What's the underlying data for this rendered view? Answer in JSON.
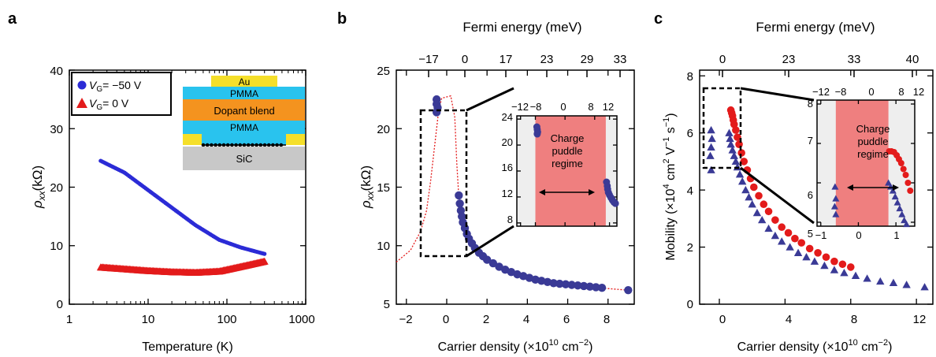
{
  "colors": {
    "blue": "#2b2bd6",
    "navy": "#3a3a96",
    "red": "#e31b1b",
    "pmma": "#29c3ee",
    "au": "#f5df2a",
    "dopant": "#f4931f",
    "sic": "#c8c8c8",
    "puddle_fill": "#ef7f7f",
    "inset_bg": "#eeeeee"
  },
  "panels": {
    "a": {
      "letter": "a",
      "legend": [
        {
          "v": "V",
          "sub": "G",
          "rest": "= −50 V"
        },
        {
          "v": "V",
          "sub": "G",
          "rest": "= 0 V"
        }
      ],
      "stack": {
        "au": "Au",
        "pmma_top": "PMMA",
        "dopant": "Dopant blend",
        "pmma_bottom": "PMMA",
        "sic": "SiC"
      }
    },
    "b": {
      "letter": "b",
      "inset_label_lines": [
        "Charge",
        "puddle",
        "regime"
      ]
    },
    "c": {
      "letter": "c",
      "inset_label_lines": [
        "Charge",
        "puddle",
        "regime"
      ]
    }
  },
  "chart_data": [
    {
      "type": "scatter",
      "panel": "a",
      "xlabel": "Temperature (K)",
      "ylabel_parts": [
        "ρ",
        "xx",
        "(kΩ)"
      ],
      "xscale": "log",
      "xlim": [
        1,
        1000
      ],
      "ylim": [
        0,
        40
      ],
      "xticks": [
        1,
        10,
        100,
        1000
      ],
      "xtick_labels": [
        "1",
        "10",
        "100",
        "1000"
      ],
      "yticks": [
        0,
        10,
        20,
        30,
        40
      ],
      "ytick_labels": [
        "0",
        "10",
        "20",
        "30",
        "40"
      ],
      "series": [
        {
          "name": "VG = −50 V",
          "marker": "circle",
          "color": "#2b2bd6",
          "x_range": [
            2.5,
            300
          ],
          "curve": [
            [
              2.5,
              24.5
            ],
            [
              5,
              22.5
            ],
            [
              10,
              19.5
            ],
            [
              20,
              16.5
            ],
            [
              40,
              13.5
            ],
            [
              80,
              11.0
            ],
            [
              150,
              9.7
            ],
            [
              300,
              8.6
            ]
          ]
        },
        {
          "name": "VG = 0 V",
          "marker": "triangle",
          "color": "#e31b1b",
          "x_range": [
            2.5,
            300
          ],
          "curve": [
            [
              2.5,
              6.3
            ],
            [
              5,
              6.0
            ],
            [
              10,
              5.7
            ],
            [
              20,
              5.5
            ],
            [
              40,
              5.4
            ],
            [
              80,
              5.6
            ],
            [
              150,
              6.4
            ],
            [
              300,
              7.3
            ]
          ]
        }
      ]
    },
    {
      "type": "scatter",
      "panel": "b",
      "xlabel_parts": [
        "Carrier density (×10",
        "10",
        " cm",
        "−2",
        ")"
      ],
      "ylabel_parts": [
        "ρ",
        "xx",
        "(kΩ)"
      ],
      "top_axis_label": "Fermi energy (meV)",
      "xlim": [
        -2.5,
        9.3
      ],
      "ylim": [
        5,
        25
      ],
      "xticks": [
        -2,
        0,
        2,
        4,
        6,
        8
      ],
      "xtick_labels": [
        "−2",
        "0",
        "2",
        "4",
        "6",
        "8"
      ],
      "yticks": [
        5,
        10,
        15,
        20,
        25
      ],
      "ytick_labels": [
        "5",
        "10",
        "15",
        "20",
        "25"
      ],
      "top_ticks": [
        -17,
        0,
        17,
        23,
        29,
        33
      ],
      "top_tick_labels": [
        "−17",
        "0",
        "17",
        "23",
        "29",
        "33"
      ],
      "series": [
        {
          "name": "",
          "marker": "circle",
          "color": "#3a3a96",
          "points": [
            [
              -0.5,
              22.5
            ],
            [
              -0.5,
              22.1
            ],
            [
              -0.45,
              21.8
            ],
            [
              -0.5,
              21.4
            ],
            [
              0.6,
              14.3
            ],
            [
              0.65,
              13.6
            ],
            [
              0.7,
              13.0
            ],
            [
              0.75,
              12.5
            ],
            [
              0.8,
              12.0
            ],
            [
              0.9,
              11.5
            ],
            [
              1.0,
              11.0
            ],
            [
              1.1,
              10.6
            ],
            [
              1.25,
              10.2
            ],
            [
              1.4,
              9.8
            ],
            [
              1.6,
              9.4
            ],
            [
              1.8,
              9.1
            ],
            [
              2.0,
              8.8
            ],
            [
              2.3,
              8.5
            ],
            [
              2.6,
              8.2
            ],
            [
              2.9,
              7.95
            ],
            [
              3.2,
              7.75
            ],
            [
              3.5,
              7.55
            ],
            [
              3.8,
              7.4
            ],
            [
              4.1,
              7.25
            ],
            [
              4.4,
              7.1
            ],
            [
              4.7,
              7.0
            ],
            [
              5.0,
              6.9
            ],
            [
              5.3,
              6.8
            ],
            [
              5.6,
              6.75
            ],
            [
              5.9,
              6.7
            ],
            [
              6.2,
              6.65
            ],
            [
              6.5,
              6.6
            ],
            [
              6.8,
              6.55
            ],
            [
              7.1,
              6.5
            ],
            [
              7.4,
              6.45
            ],
            [
              7.7,
              6.4
            ],
            [
              9.0,
              6.2
            ]
          ]
        },
        {
          "name": "",
          "marker": "dotted-line",
          "color": "#e31b1b",
          "points": [
            [
              -2.5,
              8.6
            ],
            [
              -1.8,
              9.6
            ],
            [
              -1.3,
              11.2
            ],
            [
              -1.0,
              13.0
            ],
            [
              -0.8,
              15.5
            ],
            [
              -0.6,
              18.5
            ],
            [
              -0.4,
              21.5
            ],
            [
              -0.25,
              22.6
            ],
            [
              0.2,
              22.8
            ],
            [
              0.4,
              21.0
            ],
            [
              0.5,
              17.0
            ],
            [
              0.6,
              14.2
            ],
            [
              0.8,
              12.2
            ],
            [
              1.2,
              10.2
            ],
            [
              2.0,
              8.8
            ],
            [
              3.0,
              7.9
            ],
            [
              4.5,
              7.1
            ],
            [
              6.0,
              6.7
            ],
            [
              7.5,
              6.4
            ],
            [
              9.0,
              6.2
            ]
          ]
        }
      ],
      "inset": {
        "xlim": [
          -13,
          14
        ],
        "ylim": [
          7.5,
          24.5
        ],
        "xticks": [
          -12,
          -8,
          0,
          8,
          12
        ],
        "xtick_labels": [
          "−12",
          "−8",
          "0",
          "8",
          "12"
        ],
        "yticks": [
          8,
          12,
          16,
          20,
          24
        ],
        "ytick_labels": [
          "8",
          "12",
          "16",
          "20",
          "24"
        ],
        "puddle_range": [
          -8,
          11
        ],
        "points": [
          [
            -7.6,
            22.8
          ],
          [
            -7.5,
            22.4
          ],
          [
            -7.4,
            22.0
          ],
          [
            -7.5,
            21.7
          ],
          [
            11.2,
            14.3
          ],
          [
            11.4,
            13.7
          ],
          [
            11.5,
            13.2
          ],
          [
            11.7,
            12.7
          ],
          [
            12.0,
            12.3
          ],
          [
            12.4,
            11.9
          ],
          [
            12.8,
            11.5
          ],
          [
            13.2,
            11.2
          ],
          [
            13.6,
            11.0
          ]
        ]
      }
    },
    {
      "type": "scatter",
      "panel": "c",
      "xlabel_parts": [
        "Carrier density (×10",
        "10",
        " cm",
        "−2",
        ")"
      ],
      "ylabel_parts": [
        "Mobility (×10",
        "4",
        " cm",
        "2",
        " V",
        "−1",
        " s",
        "−1",
        ")"
      ],
      "top_axis_label": "Fermi energy (meV)",
      "xlim": [
        -1.2,
        13
      ],
      "ylim": [
        0,
        8.2
      ],
      "xticks": [
        0,
        4,
        8,
        12
      ],
      "xtick_labels": [
        "0",
        "4",
        "8",
        "12"
      ],
      "yticks": [
        0,
        2,
        4,
        6,
        8
      ],
      "ytick_labels": [
        "0",
        "2",
        "4",
        "6",
        "8"
      ],
      "top_ticks": [
        0,
        23,
        33,
        40
      ],
      "top_tick_labels": [
        "0",
        "23",
        "33",
        "40"
      ],
      "series": [
        {
          "name": "",
          "marker": "circle",
          "color": "#e31b1b",
          "points": [
            [
              0.7,
              6.8
            ],
            [
              0.75,
              6.7
            ],
            [
              0.8,
              6.6
            ],
            [
              0.85,
              6.45
            ],
            [
              0.9,
              6.3
            ],
            [
              1.0,
              6.1
            ],
            [
              1.1,
              5.85
            ],
            [
              1.2,
              5.6
            ],
            [
              1.35,
              5.3
            ],
            [
              1.5,
              5.0
            ],
            [
              1.7,
              4.7
            ],
            [
              1.9,
              4.4
            ],
            [
              2.1,
              4.1
            ],
            [
              2.4,
              3.8
            ],
            [
              2.7,
              3.5
            ],
            [
              3.0,
              3.25
            ],
            [
              3.4,
              2.95
            ],
            [
              3.8,
              2.7
            ],
            [
              4.2,
              2.5
            ],
            [
              4.6,
              2.3
            ],
            [
              5.0,
              2.15
            ],
            [
              5.5,
              1.95
            ],
            [
              6.0,
              1.8
            ],
            [
              6.5,
              1.65
            ],
            [
              7.0,
              1.5
            ],
            [
              7.5,
              1.4
            ],
            [
              8.0,
              1.3
            ]
          ]
        },
        {
          "name": "",
          "marker": "triangle",
          "color": "#3a3a96",
          "points": [
            [
              -0.5,
              6.1
            ],
            [
              -0.45,
              5.8
            ],
            [
              -0.5,
              5.5
            ],
            [
              -0.55,
              5.2
            ],
            [
              -0.5,
              4.7
            ],
            [
              0.6,
              6.0
            ],
            [
              0.65,
              5.8
            ],
            [
              0.7,
              5.6
            ],
            [
              0.8,
              5.4
            ],
            [
              0.9,
              5.2
            ],
            [
              1.0,
              5.0
            ],
            [
              1.1,
              4.8
            ],
            [
              1.25,
              4.55
            ],
            [
              1.4,
              4.3
            ],
            [
              1.6,
              4.0
            ],
            [
              1.8,
              3.75
            ],
            [
              2.0,
              3.5
            ],
            [
              2.3,
              3.2
            ],
            [
              2.6,
              2.95
            ],
            [
              3.0,
              2.65
            ],
            [
              3.4,
              2.4
            ],
            [
              3.8,
              2.2
            ],
            [
              4.3,
              2.0
            ],
            [
              4.8,
              1.8
            ],
            [
              5.3,
              1.65
            ],
            [
              5.8,
              1.5
            ],
            [
              6.4,
              1.35
            ],
            [
              7.0,
              1.2
            ],
            [
              7.6,
              1.1
            ],
            [
              8.3,
              1.0
            ],
            [
              9.0,
              0.9
            ],
            [
              9.8,
              0.8
            ],
            [
              10.6,
              0.75
            ],
            [
              11.4,
              0.68
            ],
            [
              12.5,
              0.6
            ]
          ]
        }
      ],
      "inset": {
        "xlim": [
          -1.1,
          1.5
        ],
        "ylim": [
          4.9,
          8.1
        ],
        "xticks": [
          -1,
          0,
          1
        ],
        "xtick_labels": [
          "−1",
          "0",
          "1"
        ],
        "top_ticks": [
          -12,
          -8,
          0,
          8,
          12
        ],
        "top_tick_labels": [
          "−12",
          "−8",
          "0",
          "8",
          "12"
        ],
        "yticks": [
          5,
          6,
          7,
          8
        ],
        "ytick_labels": [
          "5",
          "6",
          "7",
          "8"
        ],
        "puddle_range": [
          -0.6,
          0.8
        ],
        "points_red": [
          [
            0.82,
            6.8
          ],
          [
            0.88,
            6.8
          ],
          [
            0.95,
            6.78
          ],
          [
            1.02,
            6.7
          ],
          [
            1.08,
            6.6
          ],
          [
            1.14,
            6.5
          ],
          [
            1.2,
            6.35
          ],
          [
            1.26,
            6.2
          ],
          [
            1.32,
            6.0
          ],
          [
            1.38,
            5.8
          ]
        ],
        "points_navy": [
          [
            -0.62,
            5.9
          ],
          [
            -0.6,
            5.6
          ],
          [
            -0.63,
            5.4
          ],
          [
            -0.6,
            5.2
          ],
          [
            0.8,
            6.0
          ],
          [
            0.86,
            5.9
          ],
          [
            0.92,
            5.8
          ],
          [
            0.98,
            5.65
          ],
          [
            1.04,
            5.5
          ],
          [
            1.1,
            5.35
          ],
          [
            1.16,
            5.2
          ],
          [
            1.22,
            5.05
          ],
          [
            1.28,
            4.95
          ]
        ]
      }
    }
  ]
}
